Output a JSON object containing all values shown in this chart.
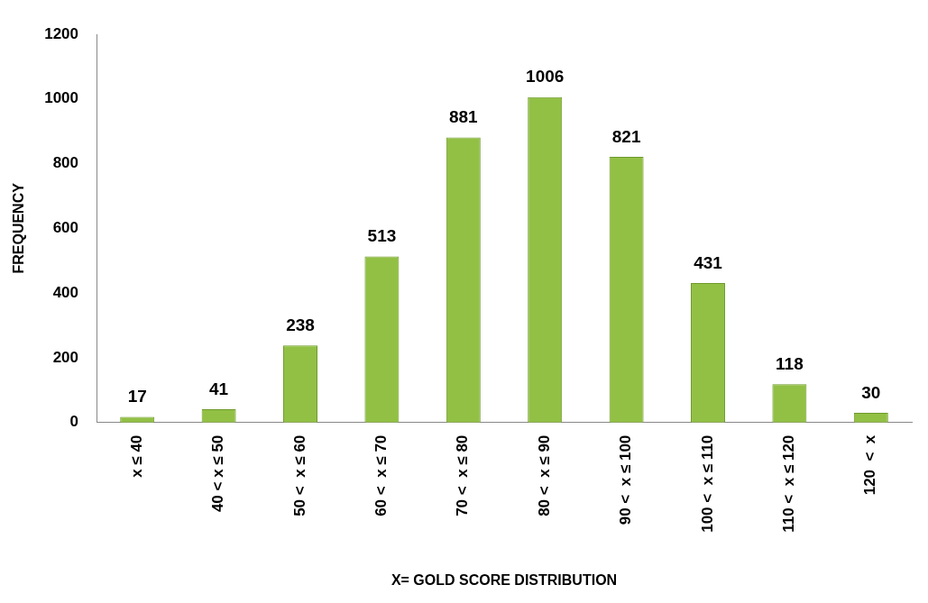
{
  "chart_data": {
    "type": "bar",
    "xlabel": "X= GOLD SCORE DISTRIBUTION",
    "ylabel": "FREQUENCY",
    "categories": [
      "x ≤ 40",
      "40 < x ≤ 50",
      "50 <  x ≤ 60",
      "60 <  x ≤ 70",
      "70 <  x ≤ 80",
      "80 <  x ≤ 90",
      "90 <  x ≤ 100",
      "100 <  x ≤ 110",
      "110 <  x ≤ 120",
      "120  <  x"
    ],
    "values": [
      17,
      41,
      238,
      513,
      881,
      1006,
      821,
      431,
      118,
      30
    ],
    "color": "#92c045",
    "ylim": [
      0,
      1200
    ],
    "yticks": [
      0,
      200,
      400,
      600,
      800,
      1000,
      1200
    ],
    "grid": false,
    "legend": false,
    "data_labels": true
  }
}
